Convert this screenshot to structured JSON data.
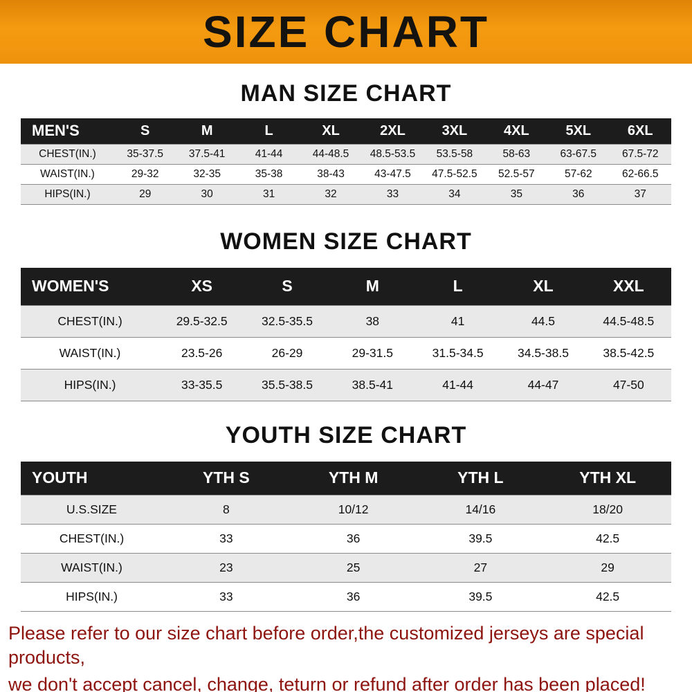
{
  "banner": {
    "title": "SIZE CHART",
    "background_color": "#f0930d",
    "text_color": "#151310"
  },
  "sections": [
    {
      "heading": "MAN SIZE CHART",
      "table": {
        "header": [
          "MEN'S",
          "S",
          "M",
          "L",
          "XL",
          "2XL",
          "3XL",
          "4XL",
          "5XL",
          "6XL"
        ],
        "rows": [
          [
            "CHEST(IN.)",
            "35-37.5",
            "37.5-41",
            "41-44",
            "44-48.5",
            "48.5-53.5",
            "53.5-58",
            "58-63",
            "63-67.5",
            "67.5-72"
          ],
          [
            "WAIST(IN.)",
            "29-32",
            "32-35",
            "35-38",
            "38-43",
            "43-47.5",
            "47.5-52.5",
            "52.5-57",
            "57-62",
            "62-66.5"
          ],
          [
            "HIPS(IN.)",
            "29",
            "30",
            "31",
            "32",
            "33",
            "34",
            "35",
            "36",
            "37"
          ]
        ]
      }
    },
    {
      "heading": "WOMEN SIZE CHART",
      "table": {
        "header": [
          "WOMEN'S",
          "XS",
          "S",
          "M",
          "L",
          "XL",
          "XXL"
        ],
        "rows": [
          [
            "CHEST(IN.)",
            "29.5-32.5",
            "32.5-35.5",
            "38",
            "41",
            "44.5",
            "44.5-48.5"
          ],
          [
            "WAIST(IN.)",
            "23.5-26",
            "26-29",
            "29-31.5",
            "31.5-34.5",
            "34.5-38.5",
            "38.5-42.5"
          ],
          [
            "HIPS(IN.)",
            "33-35.5",
            "35.5-38.5",
            "38.5-41",
            "41-44",
            "44-47",
            "47-50"
          ]
        ]
      }
    },
    {
      "heading": "YOUTH SIZE CHART",
      "table": {
        "header": [
          "YOUTH",
          "YTH S",
          "YTH M",
          "YTH L",
          "YTH XL"
        ],
        "rows": [
          [
            "U.S.SIZE",
            "8",
            "10/12",
            "14/16",
            "18/20"
          ],
          [
            "CHEST(IN.)",
            "33",
            "36",
            "39.5",
            "42.5"
          ],
          [
            "WAIST(IN.)",
            "23",
            "25",
            "27",
            "29"
          ],
          [
            "HIPS(IN.)",
            "33",
            "36",
            "39.5",
            "42.5"
          ]
        ]
      }
    }
  ],
  "footer": {
    "text_color": "#8d140f",
    "lines": [
      "Please refer to our size chart before order,the customized jerseys are special products,",
      "we don't accept cancel, change, teturn or refund after order has been placed!"
    ]
  }
}
